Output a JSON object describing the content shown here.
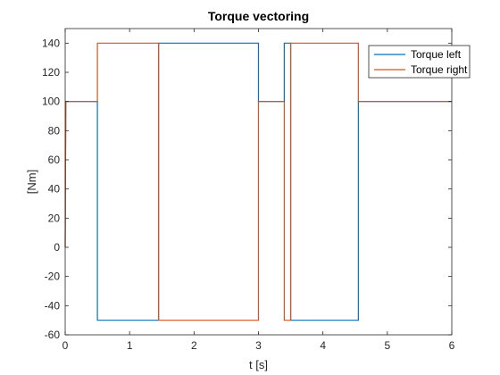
{
  "chart_data": {
    "type": "line",
    "title": "Torque vectoring",
    "xlabel": "t [s]",
    "ylabel": "[Nm]",
    "xlim": [
      0,
      6
    ],
    "ylim": [
      -60,
      150
    ],
    "xticks": [
      0,
      1,
      2,
      3,
      4,
      5,
      6
    ],
    "xtick_labels": [
      "0",
      "1",
      "2",
      "3",
      "4",
      "5",
      "6"
    ],
    "yticks": [
      -60,
      -40,
      -20,
      0,
      20,
      40,
      60,
      80,
      100,
      120,
      140
    ],
    "ytick_labels": [
      "-60",
      "-40",
      "-20",
      "0",
      "20",
      "40",
      "60",
      "80",
      "100",
      "120",
      "140"
    ],
    "grid": false,
    "legend_position": "top-right",
    "series": [
      {
        "name": "Torque left",
        "color": "#0072BD",
        "x": [
          0,
          0.01,
          0.5,
          0.5,
          1.45,
          1.45,
          3.0,
          3.0,
          3.4,
          3.4,
          3.5,
          3.5,
          4.55,
          4.55,
          6.0
        ],
        "y": [
          0,
          100,
          100,
          -50,
          -50,
          140,
          140,
          100,
          100,
          140,
          140,
          -50,
          -50,
          100,
          100
        ]
      },
      {
        "name": "Torque right",
        "color": "#D95319",
        "x": [
          0,
          0.01,
          0.5,
          0.5,
          1.45,
          1.45,
          3.0,
          3.0,
          3.4,
          3.4,
          3.5,
          3.5,
          4.55,
          4.55,
          6.0
        ],
        "y": [
          0,
          100,
          100,
          140,
          140,
          -50,
          -50,
          100,
          100,
          -50,
          -50,
          140,
          140,
          100,
          100
        ]
      }
    ]
  }
}
